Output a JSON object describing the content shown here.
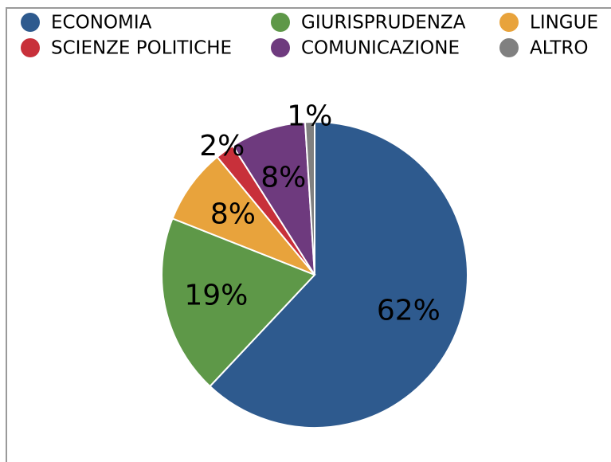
{
  "chart_data": {
    "type": "pie",
    "categories": [
      "ECONOMIA",
      "GIURISPRUDENZA",
      "LINGUE",
      "SCIENZE POLITICHE",
      "COMUNICAZIONE",
      "ALTRO"
    ],
    "values": [
      62,
      19,
      8,
      2,
      8,
      1
    ],
    "value_labels": [
      "62%",
      "19%",
      "8%",
      "2%",
      "8%",
      "1%"
    ],
    "colors": [
      "#2e5a8e",
      "#5e9848",
      "#e8a33c",
      "#c8303a",
      "#6e3a7e",
      "#808080"
    ],
    "legend": "top"
  }
}
